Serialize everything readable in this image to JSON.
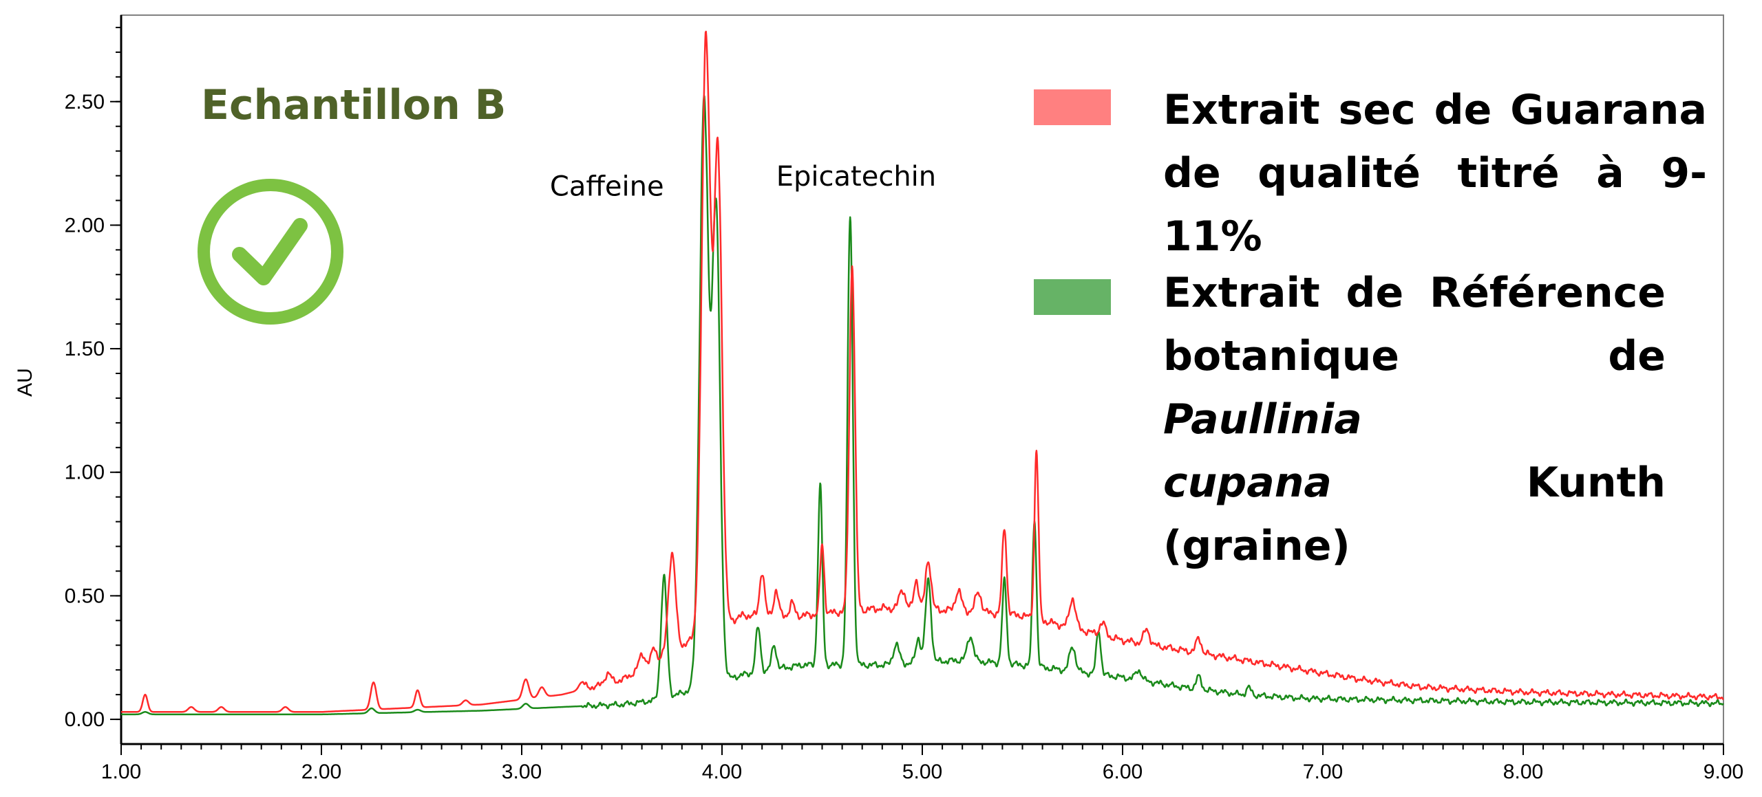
{
  "sample_title": "Echantillon B",
  "status_icon": "check-circle-icon",
  "colors": {
    "series_1": "#ff2a2a",
    "series_2": "#1a8a1a",
    "swatch_1": "#ff8080",
    "swatch_2": "#66b366",
    "title": "#4f6228",
    "check": "#7dc242"
  },
  "legend": [
    {
      "lines": [
        "Extrait sec de Guarana",
        "de qualité titré à 9-11%"
      ]
    },
    {
      "lines_html": [
        "Extrait de Référence",
        "botanique de <i>Paullinia</i>",
        "<i>cupana</i> Kunth (graine)"
      ]
    }
  ],
  "chart_data": {
    "type": "line",
    "title": "",
    "xlabel": "",
    "ylabel": "AU",
    "xlim": [
      1.0,
      9.0
    ],
    "ylim": [
      -0.1,
      2.85
    ],
    "x_ticks": [
      "1.00",
      "2.00",
      "3.00",
      "4.00",
      "5.00",
      "6.00",
      "7.00",
      "8.00",
      "9.00"
    ],
    "y_ticks": [
      "0.00",
      "0.50",
      "1.00",
      "1.50",
      "2.00",
      "2.50"
    ],
    "grid": false,
    "legend_position": "top-right",
    "annotations": [
      {
        "text": "Caffeine",
        "x": 3.71,
        "y": 2.12
      },
      {
        "text": "Epicatechin",
        "x": 4.67,
        "y": 2.16
      }
    ],
    "series": [
      {
        "name": "Extrait sec de Guarana de qualité titré à 9-11%",
        "baseline": [
          [
            1.0,
            0.03
          ],
          [
            2.0,
            0.03
          ],
          [
            2.8,
            0.06
          ],
          [
            3.2,
            0.1
          ],
          [
            3.5,
            0.16
          ],
          [
            3.7,
            0.25
          ],
          [
            3.85,
            0.32
          ],
          [
            4.1,
            0.42
          ],
          [
            4.4,
            0.42
          ],
          [
            4.8,
            0.45
          ],
          [
            5.2,
            0.44
          ],
          [
            5.5,
            0.42
          ],
          [
            5.7,
            0.38
          ],
          [
            6.0,
            0.32
          ],
          [
            6.3,
            0.28
          ],
          [
            6.6,
            0.24
          ],
          [
            6.9,
            0.2
          ],
          [
            7.2,
            0.16
          ],
          [
            7.5,
            0.13
          ],
          [
            8.0,
            0.11
          ],
          [
            9.0,
            0.09
          ]
        ],
        "peaks": [
          [
            1.12,
            0.07,
            0.012
          ],
          [
            1.35,
            0.02,
            0.015
          ],
          [
            1.5,
            0.02,
            0.015
          ],
          [
            1.82,
            0.02,
            0.015
          ],
          [
            2.26,
            0.11,
            0.014
          ],
          [
            2.48,
            0.07,
            0.012
          ],
          [
            2.72,
            0.02,
            0.015
          ],
          [
            3.02,
            0.08,
            0.015
          ],
          [
            3.1,
            0.04,
            0.015
          ],
          [
            3.3,
            0.03,
            0.015
          ],
          [
            3.43,
            0.04,
            0.015
          ],
          [
            3.6,
            0.06,
            0.015
          ],
          [
            3.66,
            0.06,
            0.012
          ],
          [
            3.75,
            0.4,
            0.018
          ],
          [
            3.92,
            2.4,
            0.022
          ],
          [
            3.98,
            1.9,
            0.02
          ],
          [
            4.2,
            0.18,
            0.012
          ],
          [
            4.27,
            0.1,
            0.012
          ],
          [
            4.35,
            0.05,
            0.012
          ],
          [
            4.5,
            0.28,
            0.01
          ],
          [
            4.65,
            1.4,
            0.014
          ],
          [
            4.9,
            0.08,
            0.015
          ],
          [
            4.97,
            0.12,
            0.012
          ],
          [
            5.03,
            0.2,
            0.014
          ],
          [
            5.18,
            0.08,
            0.015
          ],
          [
            5.28,
            0.08,
            0.015
          ],
          [
            5.41,
            0.35,
            0.011
          ],
          [
            5.57,
            0.68,
            0.01
          ],
          [
            5.75,
            0.12,
            0.015
          ],
          [
            5.9,
            0.05,
            0.015
          ],
          [
            6.12,
            0.06,
            0.015
          ],
          [
            6.38,
            0.06,
            0.013
          ]
        ]
      },
      {
        "name": "Extrait de Référence botanique de Paullinia cupana Kunth (graine)",
        "baseline": [
          [
            1.0,
            0.02
          ],
          [
            2.0,
            0.02
          ],
          [
            2.8,
            0.035
          ],
          [
            3.2,
            0.05
          ],
          [
            3.5,
            0.06
          ],
          [
            3.7,
            0.08
          ],
          [
            3.85,
            0.12
          ],
          [
            4.1,
            0.18
          ],
          [
            4.4,
            0.22
          ],
          [
            4.8,
            0.22
          ],
          [
            5.2,
            0.24
          ],
          [
            5.5,
            0.22
          ],
          [
            5.7,
            0.2
          ],
          [
            6.0,
            0.17
          ],
          [
            6.3,
            0.13
          ],
          [
            6.6,
            0.1
          ],
          [
            6.9,
            0.085
          ],
          [
            7.2,
            0.08
          ],
          [
            8.0,
            0.07
          ],
          [
            9.0,
            0.065
          ]
        ],
        "peaks": [
          [
            1.12,
            0.01,
            0.015
          ],
          [
            2.25,
            0.02,
            0.015
          ],
          [
            2.48,
            0.01,
            0.015
          ],
          [
            3.02,
            0.02,
            0.015
          ],
          [
            3.71,
            0.49,
            0.015
          ],
          [
            3.91,
            2.35,
            0.022
          ],
          [
            3.97,
            1.9,
            0.02
          ],
          [
            4.18,
            0.18,
            0.012
          ],
          [
            4.26,
            0.1,
            0.012
          ],
          [
            4.49,
            0.72,
            0.011
          ],
          [
            4.64,
            1.82,
            0.013
          ],
          [
            4.87,
            0.08,
            0.015
          ],
          [
            4.98,
            0.1,
            0.012
          ],
          [
            5.03,
            0.33,
            0.014
          ],
          [
            5.24,
            0.1,
            0.015
          ],
          [
            5.41,
            0.33,
            0.011
          ],
          [
            5.56,
            0.6,
            0.01
          ],
          [
            5.75,
            0.1,
            0.015
          ],
          [
            5.88,
            0.18,
            0.011
          ],
          [
            6.08,
            0.04,
            0.015
          ],
          [
            6.38,
            0.05,
            0.013
          ],
          [
            6.63,
            0.03,
            0.012
          ]
        ]
      }
    ]
  }
}
